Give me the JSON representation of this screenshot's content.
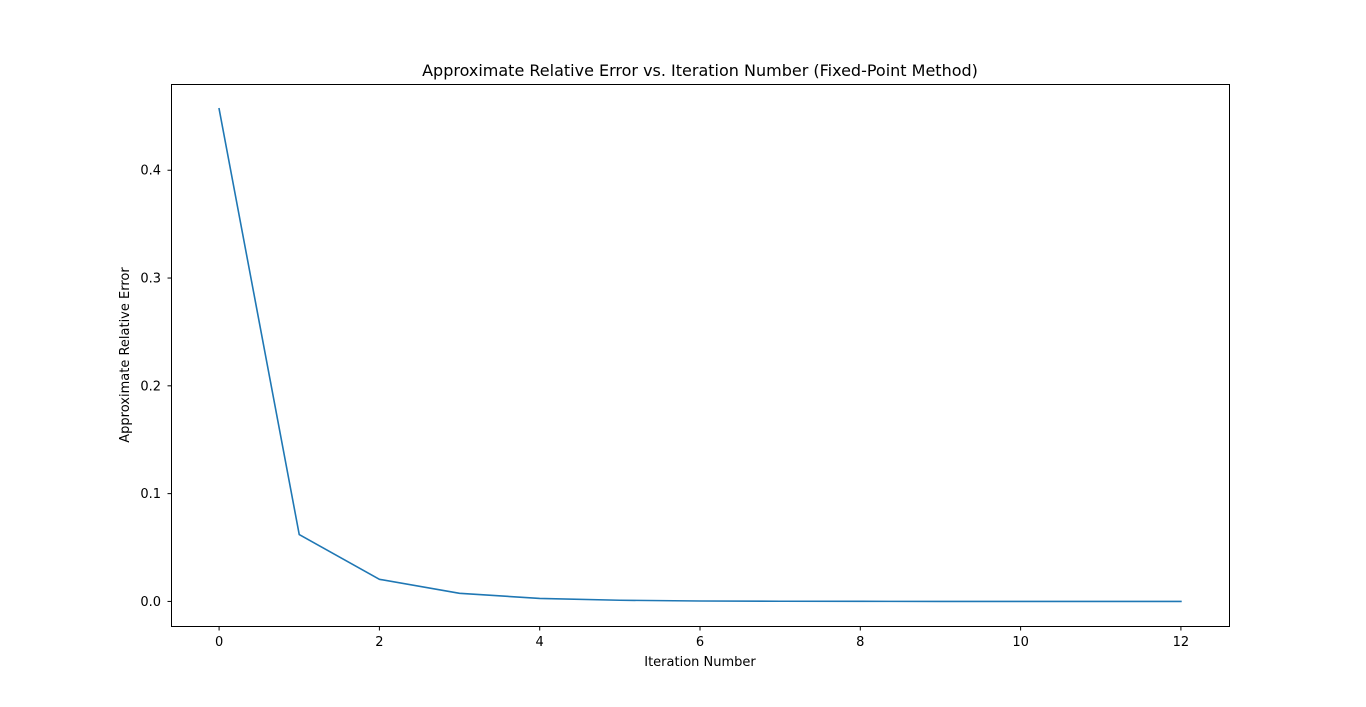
{
  "chart_data": {
    "type": "line",
    "title": "Approximate Relative Error vs. Iteration Number (Fixed-Point Method)",
    "xlabel": "Iteration Number",
    "ylabel": "Approximate Relative Error",
    "x": [
      0,
      1,
      2,
      3,
      4,
      5,
      6,
      7,
      8,
      9,
      10,
      11,
      12
    ],
    "series": [
      {
        "values": [
          0.457,
          0.062,
          0.0205,
          0.0075,
          0.0028,
          0.0011,
          0.0004,
          0.00015,
          6e-05,
          2e-05,
          1e-05,
          4e-06,
          1e-06
        ],
        "color": "#1f77b4"
      }
    ],
    "xlim": [
      -0.6,
      12.6
    ],
    "ylim": [
      -0.0228,
      0.48
    ],
    "xticks": [
      0,
      2,
      4,
      6,
      8,
      10,
      12
    ],
    "xtick_labels": [
      "0",
      "2",
      "4",
      "6",
      "8",
      "10",
      "12"
    ],
    "yticks": [
      0.0,
      0.1,
      0.2,
      0.3,
      0.4
    ],
    "ytick_labels": [
      "0.0",
      "0.1",
      "0.2",
      "0.3",
      "0.4"
    ],
    "grid": false,
    "legend": "none"
  }
}
